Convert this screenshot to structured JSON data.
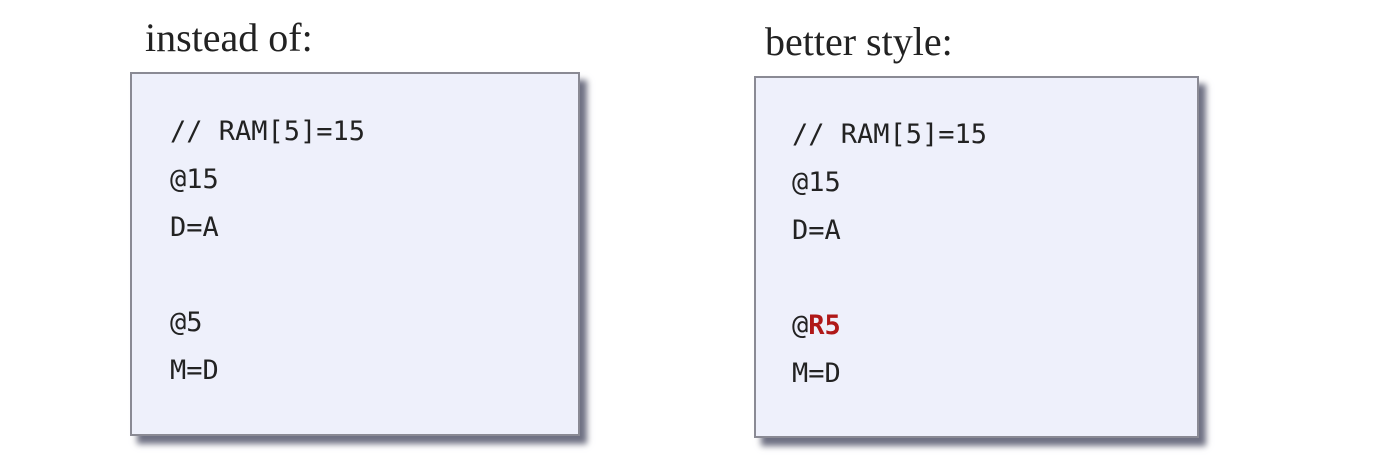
{
  "panels": [
    {
      "heading": "instead of:",
      "blocks": [
        [
          "// RAM[5]=15",
          "@15",
          "D=A"
        ],
        [
          "@5",
          "M=D"
        ]
      ]
    },
    {
      "heading": "better style:",
      "blocks": [
        [
          "// RAM[5]=15",
          "@15",
          "D=A"
        ],
        [
          {
            "plain": "@",
            "highlight": "R5"
          },
          "M=D"
        ]
      ]
    }
  ]
}
